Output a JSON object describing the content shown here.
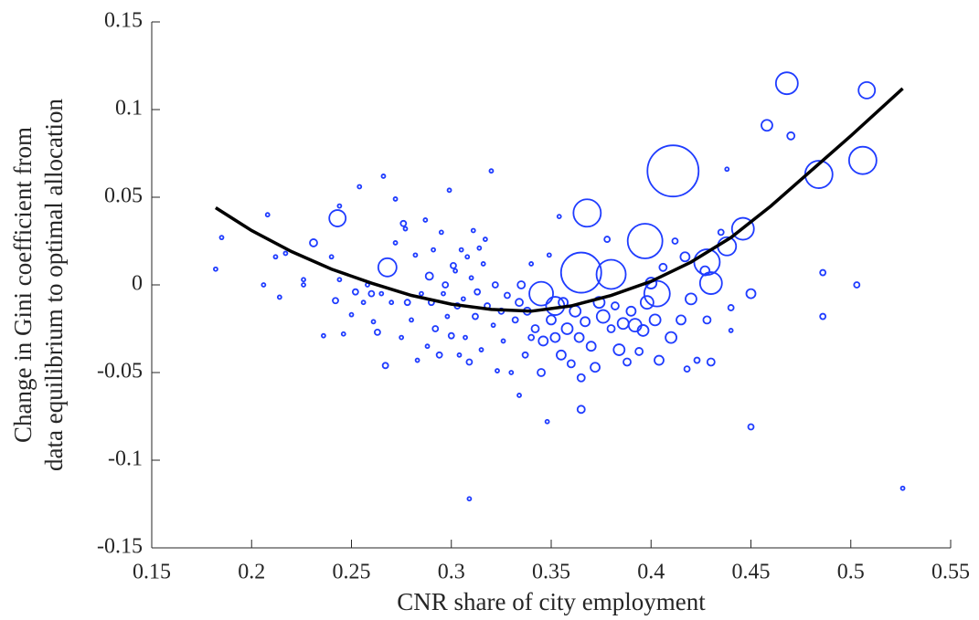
{
  "chart_data": {
    "type": "scatter",
    "xlabel": "CNR share of city employment",
    "ylabel": [
      "Change in Gini coefficient from",
      "data equilibrium to optimal allocation"
    ],
    "xlim": [
      0.15,
      0.55
    ],
    "ylim": [
      -0.15,
      0.15
    ],
    "xticks": [
      0.15,
      0.2,
      0.25,
      0.3,
      0.35,
      0.4,
      0.45,
      0.5,
      0.55
    ],
    "yticks": [
      -0.15,
      -0.1,
      -0.05,
      0,
      0.05,
      0.1,
      0.15
    ],
    "grid": false,
    "series": [
      {
        "type": "scatter",
        "color": "#1f3cff",
        "x": [
          0.411,
          0.468,
          0.508,
          0.506,
          0.484,
          0.458,
          0.47,
          0.368,
          0.397,
          0.365,
          0.38,
          0.446,
          0.438,
          0.428,
          0.43,
          0.403,
          0.345,
          0.352,
          0.243,
          0.268,
          0.182,
          0.185,
          0.208,
          0.206,
          0.212,
          0.214,
          0.217,
          0.226,
          0.226,
          0.231,
          0.236,
          0.24,
          0.242,
          0.244,
          0.244,
          0.246,
          0.25,
          0.252,
          0.254,
          0.256,
          0.258,
          0.26,
          0.261,
          0.263,
          0.265,
          0.266,
          0.267,
          0.27,
          0.272,
          0.272,
          0.275,
          0.276,
          0.277,
          0.278,
          0.28,
          0.282,
          0.283,
          0.285,
          0.287,
          0.288,
          0.289,
          0.29,
          0.291,
          0.292,
          0.294,
          0.295,
          0.296,
          0.297,
          0.298,
          0.299,
          0.3,
          0.301,
          0.302,
          0.303,
          0.304,
          0.305,
          0.306,
          0.307,
          0.308,
          0.309,
          0.309,
          0.31,
          0.311,
          0.312,
          0.313,
          0.314,
          0.315,
          0.316,
          0.317,
          0.318,
          0.32,
          0.321,
          0.322,
          0.323,
          0.325,
          0.326,
          0.328,
          0.33,
          0.332,
          0.334,
          0.334,
          0.335,
          0.337,
          0.338,
          0.34,
          0.34,
          0.342,
          0.345,
          0.346,
          0.348,
          0.349,
          0.35,
          0.352,
          0.354,
          0.355,
          0.356,
          0.358,
          0.36,
          0.362,
          0.364,
          0.365,
          0.365,
          0.367,
          0.37,
          0.372,
          0.374,
          0.376,
          0.378,
          0.38,
          0.382,
          0.384,
          0.386,
          0.388,
          0.39,
          0.392,
          0.394,
          0.396,
          0.398,
          0.4,
          0.402,
          0.404,
          0.406,
          0.41,
          0.412,
          0.415,
          0.417,
          0.418,
          0.42,
          0.423,
          0.427,
          0.428,
          0.43,
          0.435,
          0.438,
          0.44,
          0.44,
          0.45,
          0.45,
          0.486,
          0.486,
          0.503,
          0.526
        ],
        "values": [
          0.065,
          0.115,
          0.111,
          0.071,
          0.063,
          0.091,
          0.085,
          0.041,
          0.025,
          0.007,
          0.006,
          0.032,
          0.022,
          0.013,
          0.001,
          -0.005,
          -0.005,
          -0.012,
          0.038,
          0.01,
          0.009,
          0.027,
          0.04,
          0.0,
          0.016,
          -0.007,
          0.018,
          0.003,
          0.0,
          0.024,
          -0.029,
          0.016,
          -0.009,
          0.045,
          0.003,
          -0.028,
          -0.017,
          -0.004,
          0.056,
          -0.01,
          0.0,
          -0.005,
          -0.021,
          -0.027,
          -0.005,
          0.062,
          -0.046,
          -0.01,
          0.049,
          0.024,
          -0.03,
          0.035,
          0.032,
          -0.01,
          -0.02,
          0.017,
          -0.043,
          -0.005,
          0.037,
          -0.035,
          0.005,
          -0.01,
          0.02,
          -0.025,
          -0.04,
          0.03,
          -0.005,
          0.0,
          -0.018,
          0.054,
          -0.029,
          0.011,
          0.008,
          -0.012,
          -0.04,
          0.02,
          -0.008,
          -0.03,
          0.016,
          -0.122,
          -0.044,
          0.004,
          0.031,
          -0.018,
          -0.004,
          0.021,
          -0.037,
          0.012,
          0.026,
          -0.012,
          0.065,
          -0.023,
          0.0,
          -0.049,
          -0.015,
          -0.032,
          -0.006,
          -0.05,
          -0.02,
          -0.01,
          -0.063,
          0.0,
          -0.04,
          -0.015,
          -0.03,
          0.012,
          -0.025,
          -0.05,
          -0.032,
          -0.078,
          0.017,
          -0.02,
          -0.03,
          0.039,
          -0.04,
          -0.01,
          -0.025,
          -0.045,
          -0.015,
          -0.03,
          -0.053,
          -0.071,
          -0.021,
          -0.035,
          -0.047,
          -0.01,
          -0.018,
          0.026,
          -0.025,
          -0.012,
          -0.037,
          -0.022,
          -0.044,
          -0.015,
          -0.023,
          -0.038,
          -0.026,
          -0.01,
          0.001,
          -0.02,
          -0.043,
          0.01,
          -0.03,
          0.025,
          -0.02,
          0.016,
          -0.048,
          -0.008,
          -0.043,
          0.008,
          -0.02,
          -0.044,
          0.03,
          0.066,
          -0.026,
          -0.013,
          -0.005,
          -0.081,
          0.007,
          -0.018,
          0.0,
          -0.116
        ],
        "sizes": [
          28,
          12,
          9,
          15,
          15,
          6,
          4,
          15,
          19,
          22,
          16,
          12,
          10,
          14,
          12,
          14,
          13,
          10,
          9,
          10,
          2,
          2,
          2,
          2,
          2,
          2,
          2,
          2,
          2,
          4,
          2,
          2,
          3,
          2,
          2,
          2,
          2,
          3,
          2,
          2,
          2,
          3,
          2,
          3,
          2,
          2,
          3,
          2,
          2,
          2,
          2,
          3,
          2,
          3,
          2,
          2,
          2,
          2,
          2,
          2,
          4,
          3,
          2,
          3,
          3,
          2,
          2,
          3,
          2,
          2,
          3,
          3,
          2,
          3,
          2,
          2,
          2,
          2,
          2,
          2,
          3,
          2,
          2,
          3,
          3,
          2,
          2,
          2,
          2,
          3,
          2,
          2,
          3,
          2,
          3,
          2,
          3,
          2,
          3,
          4,
          2,
          4,
          3,
          4,
          3,
          2,
          4,
          4,
          5,
          2,
          2,
          5,
          5,
          2,
          5,
          5,
          6,
          4,
          6,
          5,
          4,
          4,
          5,
          5,
          5,
          6,
          7,
          3,
          4,
          4,
          6,
          6,
          4,
          5,
          7,
          4,
          6,
          7,
          6,
          6,
          5,
          4,
          6,
          3,
          5,
          5,
          3,
          6,
          3,
          5,
          4,
          4,
          3,
          2,
          2,
          3,
          5,
          3,
          3,
          3,
          3,
          2
        ]
      },
      {
        "type": "line",
        "color": "#000000",
        "x": [
          0.182,
          0.2,
          0.22,
          0.24,
          0.26,
          0.28,
          0.3,
          0.32,
          0.34,
          0.36,
          0.38,
          0.4,
          0.42,
          0.44,
          0.46,
          0.48,
          0.5,
          0.526
        ],
        "values": [
          0.044,
          0.031,
          0.019,
          0.009,
          0.001,
          -0.006,
          -0.011,
          -0.014,
          -0.015,
          -0.012,
          -0.006,
          0.002,
          0.013,
          0.027,
          0.045,
          0.065,
          0.085,
          0.112
        ]
      }
    ]
  }
}
